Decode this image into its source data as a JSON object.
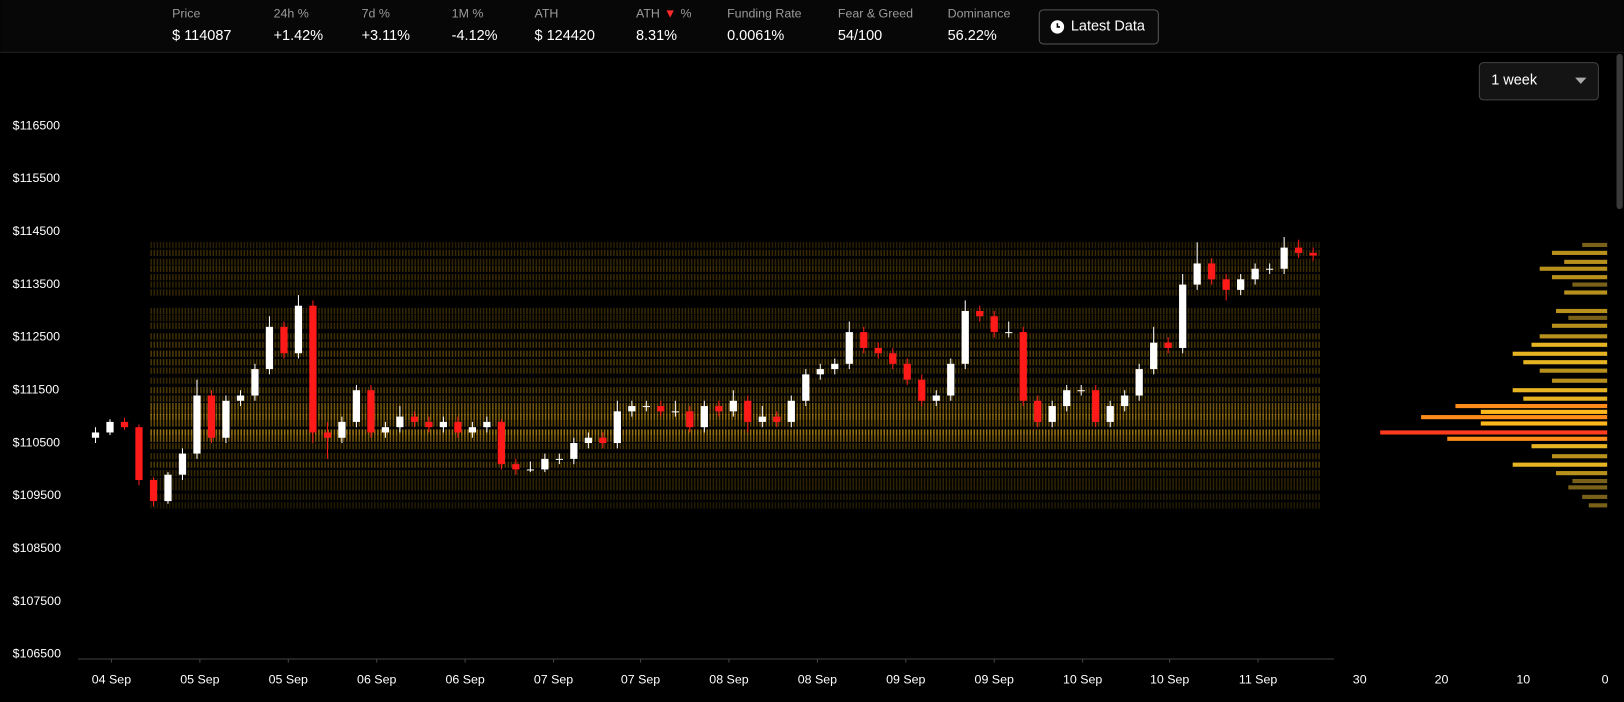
{
  "header": {
    "stats": [
      {
        "label": "Price",
        "value": "$ 114087"
      },
      {
        "label": "24h %",
        "value": "+1.42%"
      },
      {
        "label": "7d %",
        "value": "+3.11%"
      },
      {
        "label": "1M %",
        "value": "-4.12%"
      },
      {
        "label": "ATH",
        "value": "$ 124420"
      },
      {
        "label": "ATH",
        "arrow": "▼",
        "suffix": "%",
        "value": "8.31%"
      },
      {
        "label": "Funding Rate",
        "value": "0.0061%"
      },
      {
        "label": "Fear & Greed",
        "value": "54/100"
      },
      {
        "label": "Dominance",
        "value": "56.22%"
      }
    ],
    "button": "Latest Data"
  },
  "controls": {
    "range": "1 week"
  },
  "chart_data": {
    "type": "candlestick",
    "up_color": "#ffffff",
    "down_color": "#ff1a1a",
    "xlim": [
      0,
      85
    ],
    "xticks": [
      {
        "value": 1.6,
        "label": "04 Sep"
      },
      {
        "value": 7.7,
        "label": "05 Sep"
      },
      {
        "value": 13.8,
        "label": "05 Sep"
      },
      {
        "value": 19.9,
        "label": "06 Sep"
      },
      {
        "value": 26.0,
        "label": "06 Sep"
      },
      {
        "value": 32.1,
        "label": "07 Sep"
      },
      {
        "value": 38.1,
        "label": "07 Sep"
      },
      {
        "value": 44.2,
        "label": "08 Sep"
      },
      {
        "value": 50.3,
        "label": "08 Sep"
      },
      {
        "value": 56.4,
        "label": "09 Sep"
      },
      {
        "value": 62.5,
        "label": "09 Sep"
      },
      {
        "value": 68.6,
        "label": "10 Sep"
      },
      {
        "value": 74.6,
        "label": "10 Sep"
      },
      {
        "value": 80.7,
        "label": "11 Sep"
      }
    ],
    "ylim": [
      106420,
      117810
    ],
    "yticks": [
      {
        "value": 106500,
        "label": "$106500"
      },
      {
        "value": 107500,
        "label": "$107500"
      },
      {
        "value": 108500,
        "label": "$108500"
      },
      {
        "value": 109500,
        "label": "$109500"
      },
      {
        "value": 110500,
        "label": "$110500"
      },
      {
        "value": 111500,
        "label": "$111500"
      },
      {
        "value": 112500,
        "label": "$112500"
      },
      {
        "value": 113500,
        "label": "$113500"
      },
      {
        "value": 114500,
        "label": "$114500"
      },
      {
        "value": 115500,
        "label": "$115500"
      },
      {
        "value": 116500,
        "label": "$116500"
      }
    ],
    "candles": [
      [
        110600,
        110800,
        110500,
        110700
      ],
      [
        110700,
        110950,
        110650,
        110900
      ],
      [
        110900,
        110980,
        110750,
        110800
      ],
      [
        110800,
        110850,
        109700,
        109800
      ],
      [
        109800,
        109850,
        109300,
        109400
      ],
      [
        109400,
        109950,
        109350,
        109900
      ],
      [
        109900,
        110400,
        109800,
        110300
      ],
      [
        110300,
        111700,
        110200,
        111400
      ],
      [
        111400,
        111500,
        110500,
        110600
      ],
      [
        110600,
        111400,
        110500,
        111300
      ],
      [
        111300,
        111500,
        111200,
        111400
      ],
      [
        111400,
        112000,
        111300,
        111900
      ],
      [
        111900,
        112900,
        111800,
        112700
      ],
      [
        112700,
        112800,
        112100,
        112200
      ],
      [
        112200,
        113300,
        112100,
        113100
      ],
      [
        113100,
        113200,
        110500,
        110700
      ],
      [
        110700,
        110900,
        110200,
        110600
      ],
      [
        110600,
        111000,
        110500,
        110900
      ],
      [
        110900,
        111600,
        110800,
        111500
      ],
      [
        111500,
        111600,
        110600,
        110700
      ],
      [
        110700,
        110900,
        110600,
        110800
      ],
      [
        110800,
        111200,
        110700,
        111000
      ],
      [
        111000,
        111100,
        110800,
        110900
      ],
      [
        110900,
        111000,
        110700,
        110800
      ],
      [
        110800,
        111000,
        110700,
        110900
      ],
      [
        110900,
        111000,
        110600,
        110700
      ],
      [
        110700,
        110900,
        110600,
        110800
      ],
      [
        110800,
        111000,
        110700,
        110900
      ],
      [
        110900,
        110950,
        110000,
        110100
      ],
      [
        110100,
        110200,
        109900,
        110000
      ],
      [
        110000,
        110150,
        109950,
        110000
      ],
      [
        110000,
        110300,
        109950,
        110200
      ],
      [
        110200,
        110300,
        110100,
        110200
      ],
      [
        110200,
        110600,
        110100,
        110500
      ],
      [
        110500,
        110700,
        110400,
        110600
      ],
      [
        110600,
        110700,
        110400,
        110500
      ],
      [
        110500,
        111300,
        110400,
        111100
      ],
      [
        111100,
        111300,
        111000,
        111200
      ],
      [
        111200,
        111300,
        111100,
        111200
      ],
      [
        111200,
        111300,
        111000,
        111100
      ],
      [
        111100,
        111300,
        111000,
        111100
      ],
      [
        111100,
        111200,
        110700,
        110800
      ],
      [
        110800,
        111300,
        110700,
        111200
      ],
      [
        111200,
        111300,
        111000,
        111100
      ],
      [
        111100,
        111500,
        111000,
        111300
      ],
      [
        111300,
        111400,
        110700,
        110900
      ],
      [
        110900,
        111200,
        110800,
        111000
      ],
      [
        111000,
        111100,
        110800,
        110900
      ],
      [
        110900,
        111400,
        110800,
        111300
      ],
      [
        111300,
        111900,
        111200,
        111800
      ],
      [
        111800,
        112000,
        111700,
        111900
      ],
      [
        111900,
        112100,
        111800,
        112000
      ],
      [
        112000,
        112800,
        111900,
        112600
      ],
      [
        112600,
        112700,
        112200,
        112300
      ],
      [
        112300,
        112400,
        112100,
        112200
      ],
      [
        112200,
        112300,
        111900,
        112000
      ],
      [
        112000,
        112100,
        111600,
        111700
      ],
      [
        111700,
        111800,
        111200,
        111300
      ],
      [
        111300,
        111500,
        111200,
        111400
      ],
      [
        111400,
        112100,
        111300,
        112000
      ],
      [
        112000,
        113200,
        111900,
        113000
      ],
      [
        113000,
        113100,
        112800,
        112900
      ],
      [
        112900,
        113000,
        112500,
        112600
      ],
      [
        112600,
        112800,
        112500,
        112600
      ],
      [
        112600,
        112700,
        111200,
        111300
      ],
      [
        111300,
        111400,
        110800,
        110900
      ],
      [
        110900,
        111300,
        110800,
        111200
      ],
      [
        111200,
        111600,
        111100,
        111500
      ],
      [
        111500,
        111600,
        111400,
        111500
      ],
      [
        111500,
        111600,
        110800,
        110900
      ],
      [
        110900,
        111300,
        110800,
        111200
      ],
      [
        111200,
        111500,
        111100,
        111400
      ],
      [
        111400,
        112000,
        111300,
        111900
      ],
      [
        111900,
        112700,
        111800,
        112400
      ],
      [
        112400,
        112500,
        112200,
        112300
      ],
      [
        112300,
        113700,
        112200,
        113500
      ],
      [
        113500,
        114300,
        113400,
        113900
      ],
      [
        113900,
        114000,
        113500,
        113600
      ],
      [
        113600,
        113700,
        113200,
        113400
      ],
      [
        113400,
        113700,
        113300,
        113600
      ],
      [
        113600,
        113900,
        113500,
        113800
      ],
      [
        113800,
        113900,
        113700,
        113800
      ],
      [
        113800,
        114400,
        113700,
        114200
      ],
      [
        114200,
        114350,
        114000,
        114100
      ],
      [
        114100,
        114200,
        113950,
        114050
      ]
    ],
    "profile": {
      "xlim": [
        30,
        0
      ],
      "xticks": [
        30,
        20,
        10,
        0
      ],
      "levels": [
        114250,
        114100,
        113930,
        113800,
        113640,
        113500,
        113350,
        113000,
        112870,
        112720,
        112520,
        112360,
        112190,
        112030,
        111870,
        111680,
        111500,
        111340,
        111200,
        111090,
        110990,
        110870,
        110700,
        110580,
        110440,
        110250,
        110090,
        109930,
        109780,
        109660,
        109480,
        109320
      ],
      "values": [
        2.8,
        6.5,
        5,
        8,
        6.5,
        4,
        5,
        6,
        4.5,
        6.5,
        8,
        9,
        11.3,
        10,
        8,
        6.5,
        11.3,
        10,
        18.3,
        15.2,
        22.5,
        15.2,
        27.5,
        19.3,
        9,
        6.5,
        11.3,
        6,
        4,
        4.5,
        2.8,
        2
      ]
    }
  }
}
